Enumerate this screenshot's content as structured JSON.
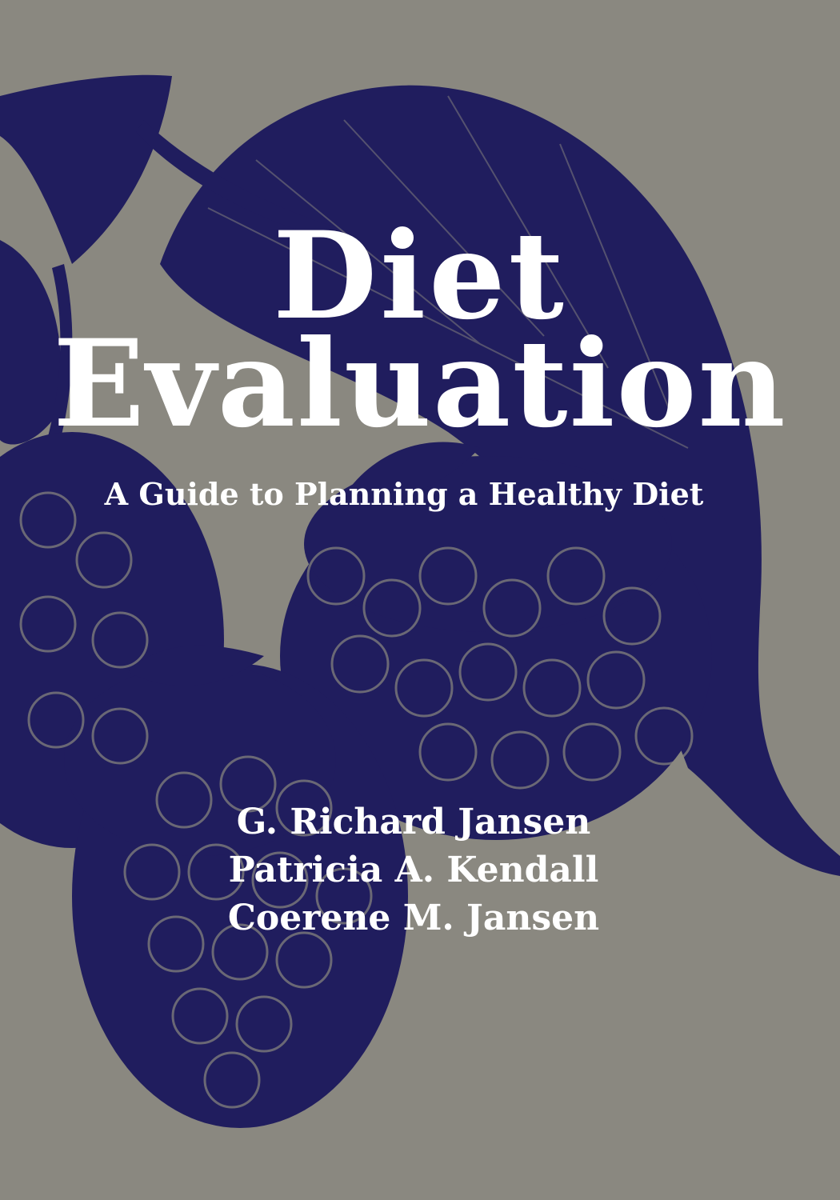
{
  "cover": {
    "title_line1": "Diet",
    "title_line2": "Evaluation",
    "subtitle": "A Guide to Planning a Healthy Diet",
    "authors": [
      "G. Richard Jansen",
      "Patricia A. Kendall",
      "Coerene M. Jansen"
    ]
  },
  "colors": {
    "background": "#8a8880",
    "illustration": "#201d5e",
    "text": "#ffffff"
  }
}
